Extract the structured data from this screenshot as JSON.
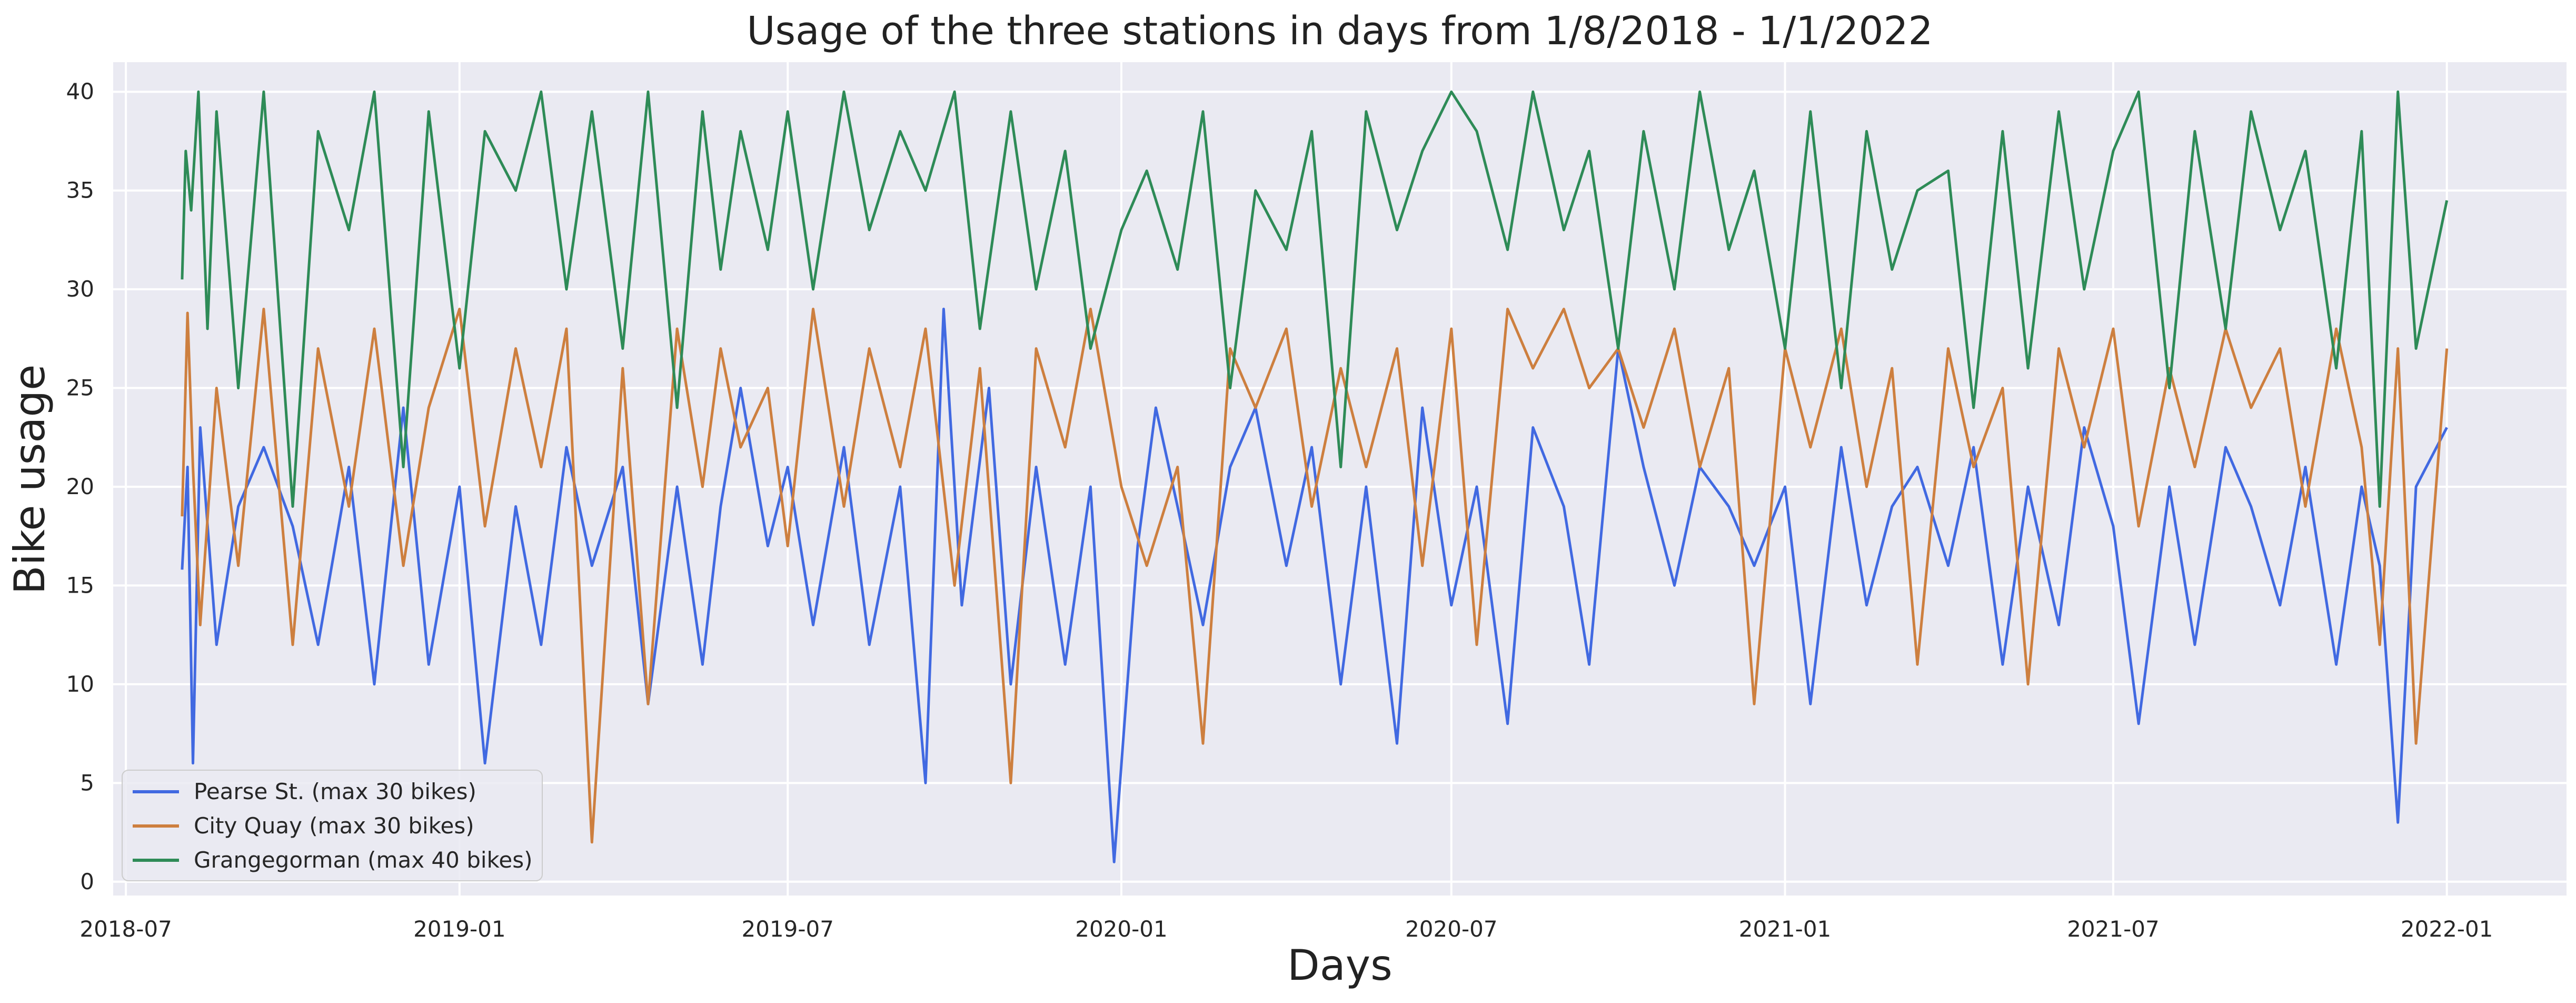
{
  "chart_data": {
    "type": "line",
    "title": "Usage of the three stations in days from 1/8/2018 - 1/1/2022",
    "xlabel": "Days",
    "ylabel": "Bike usage",
    "x_range": [
      "2018-06-24",
      "2022-03-08"
    ],
    "ylim": [
      -0.7,
      41.5
    ],
    "x_ticks": [
      "2018-07",
      "2019-01",
      "2019-07",
      "2020-01",
      "2020-07",
      "2021-01",
      "2021-07",
      "2022-01"
    ],
    "y_ticks": [
      0,
      5,
      10,
      15,
      20,
      25,
      30,
      35,
      40
    ],
    "grid": true,
    "legend_position": "lower-left",
    "background": "#eaeaf2",
    "series": [
      {
        "name": "Pearse St. (max 30 bikes)",
        "color": "#4169e1",
        "x": [
          "2018-08-01",
          "2018-08-04",
          "2018-08-07",
          "2018-08-11",
          "2018-08-20",
          "2018-09-01",
          "2018-09-15",
          "2018-10-01",
          "2018-10-15",
          "2018-11-01",
          "2018-11-15",
          "2018-12-01",
          "2018-12-15",
          "2019-01-01",
          "2019-01-15",
          "2019-02-01",
          "2019-02-15",
          "2019-03-01",
          "2019-03-15",
          "2019-04-01",
          "2019-04-15",
          "2019-05-01",
          "2019-05-15",
          "2019-05-25",
          "2019-06-05",
          "2019-06-20",
          "2019-07-01",
          "2019-07-15",
          "2019-08-01",
          "2019-08-15",
          "2019-09-01",
          "2019-09-15",
          "2019-09-25",
          "2019-10-05",
          "2019-10-20",
          "2019-11-01",
          "2019-11-15",
          "2019-12-01",
          "2019-12-15",
          "2019-12-28",
          "2020-01-10",
          "2020-01-20",
          "2020-02-01",
          "2020-02-15",
          "2020-03-01",
          "2020-03-15",
          "2020-04-01",
          "2020-04-15",
          "2020-05-01",
          "2020-05-15",
          "2020-06-01",
          "2020-06-15",
          "2020-07-01",
          "2020-07-15",
          "2020-08-01",
          "2020-08-15",
          "2020-09-01",
          "2020-09-15",
          "2020-10-01",
          "2020-10-15",
          "2020-11-01",
          "2020-11-15",
          "2020-12-01",
          "2020-12-15",
          "2021-01-01",
          "2021-01-15",
          "2021-02-01",
          "2021-02-15",
          "2021-03-01",
          "2021-03-15",
          "2021-04-01",
          "2021-04-15",
          "2021-05-01",
          "2021-05-15",
          "2021-06-01",
          "2021-06-15",
          "2021-07-01",
          "2021-07-15",
          "2021-08-01",
          "2021-08-15",
          "2021-09-01",
          "2021-09-15",
          "2021-10-01",
          "2021-10-15",
          "2021-11-01",
          "2021-11-15",
          "2021-11-25",
          "2021-12-05",
          "2021-12-15",
          "2022-01-01"
        ],
        "values": [
          15.8,
          21,
          6,
          23,
          12,
          19,
          22,
          18,
          12,
          21,
          10,
          24,
          11,
          20,
          6,
          19,
          12,
          22,
          16,
          21,
          9,
          20,
          11,
          19,
          25,
          17,
          21,
          13,
          22,
          12,
          20,
          5,
          29,
          14,
          25,
          10,
          21,
          11,
          20,
          1,
          17,
          24,
          19,
          13,
          21,
          24,
          16,
          22,
          10,
          20,
          7,
          24,
          14,
          20,
          8,
          23,
          19,
          11,
          27,
          21,
          15,
          21,
          19,
          16,
          20,
          9,
          22,
          14,
          19,
          21,
          16,
          22,
          11,
          20,
          13,
          23,
          18,
          8,
          20,
          12,
          22,
          19,
          14,
          21,
          11,
          20,
          16,
          3,
          20,
          23
        ]
      },
      {
        "name": "City Quay (max 30 bikes)",
        "color": "#cd7f3f",
        "x": [
          "2018-08-01",
          "2018-08-04",
          "2018-08-07",
          "2018-08-11",
          "2018-08-20",
          "2018-09-01",
          "2018-09-15",
          "2018-10-01",
          "2018-10-15",
          "2018-11-01",
          "2018-11-15",
          "2018-12-01",
          "2018-12-15",
          "2019-01-01",
          "2019-01-15",
          "2019-02-01",
          "2019-02-15",
          "2019-03-01",
          "2019-03-15",
          "2019-04-01",
          "2019-04-15",
          "2019-05-01",
          "2019-05-15",
          "2019-05-25",
          "2019-06-05",
          "2019-06-20",
          "2019-07-01",
          "2019-07-15",
          "2019-08-01",
          "2019-08-15",
          "2019-09-01",
          "2019-09-15",
          "2019-10-01",
          "2019-10-15",
          "2019-11-01",
          "2019-11-15",
          "2019-12-01",
          "2019-12-15",
          "2020-01-01",
          "2020-01-15",
          "2020-02-01",
          "2020-02-15",
          "2020-03-01",
          "2020-03-15",
          "2020-04-01",
          "2020-04-15",
          "2020-05-01",
          "2020-05-15",
          "2020-06-01",
          "2020-06-15",
          "2020-07-01",
          "2020-07-15",
          "2020-08-01",
          "2020-08-15",
          "2020-09-01",
          "2020-09-15",
          "2020-10-01",
          "2020-10-15",
          "2020-11-01",
          "2020-11-15",
          "2020-12-01",
          "2020-12-15",
          "2021-01-01",
          "2021-01-15",
          "2021-02-01",
          "2021-02-15",
          "2021-03-01",
          "2021-03-15",
          "2021-04-01",
          "2021-04-15",
          "2021-05-01",
          "2021-05-15",
          "2021-06-01",
          "2021-06-15",
          "2021-07-01",
          "2021-07-15",
          "2021-08-01",
          "2021-08-15",
          "2021-09-01",
          "2021-09-15",
          "2021-10-01",
          "2021-10-15",
          "2021-11-01",
          "2021-11-15",
          "2021-11-25",
          "2021-12-05",
          "2021-12-15",
          "2022-01-01"
        ],
        "values": [
          18.5,
          28.8,
          21,
          13,
          25,
          16,
          29,
          12,
          27,
          19,
          28,
          16,
          24,
          29,
          18,
          27,
          21,
          28,
          2,
          26,
          9,
          28,
          20,
          27,
          22,
          25,
          17,
          29,
          19,
          27,
          21,
          28,
          15,
          26,
          5,
          27,
          22,
          29,
          20,
          16,
          21,
          7,
          27,
          24,
          28,
          19,
          26,
          21,
          27,
          16,
          28,
          12,
          29,
          26,
          29,
          25,
          27,
          23,
          28,
          21,
          26,
          9,
          27,
          22,
          28,
          20,
          26,
          11,
          27,
          21,
          25,
          10,
          27,
          22,
          28,
          18,
          26,
          21,
          28,
          24,
          27,
          19,
          28,
          22,
          12,
          27,
          7,
          27
        ]
      },
      {
        "name": "Grangegorman (max 40 bikes)",
        "color": "#2e8b57",
        "x": [
          "2018-08-01",
          "2018-08-03",
          "2018-08-06",
          "2018-08-10",
          "2018-08-15",
          "2018-08-20",
          "2018-09-01",
          "2018-09-15",
          "2018-10-01",
          "2018-10-15",
          "2018-11-01",
          "2018-11-15",
          "2018-12-01",
          "2018-12-15",
          "2019-01-01",
          "2019-01-15",
          "2019-02-01",
          "2019-02-15",
          "2019-03-01",
          "2019-03-15",
          "2019-04-01",
          "2019-04-15",
          "2019-05-01",
          "2019-05-15",
          "2019-05-25",
          "2019-06-05",
          "2019-06-20",
          "2019-07-01",
          "2019-07-15",
          "2019-08-01",
          "2019-08-15",
          "2019-09-01",
          "2019-09-15",
          "2019-10-01",
          "2019-10-15",
          "2019-11-01",
          "2019-11-15",
          "2019-12-01",
          "2019-12-15",
          "2020-01-01",
          "2020-01-15",
          "2020-02-01",
          "2020-02-15",
          "2020-03-01",
          "2020-03-15",
          "2020-04-01",
          "2020-04-15",
          "2020-05-01",
          "2020-05-15",
          "2020-06-01",
          "2020-06-15",
          "2020-07-01",
          "2020-07-15",
          "2020-08-01",
          "2020-08-15",
          "2020-09-01",
          "2020-09-15",
          "2020-10-01",
          "2020-10-15",
          "2020-11-01",
          "2020-11-15",
          "2020-12-01",
          "2020-12-15",
          "2021-01-01",
          "2021-01-15",
          "2021-02-01",
          "2021-02-15",
          "2021-03-01",
          "2021-03-15",
          "2021-04-01",
          "2021-04-15",
          "2021-05-01",
          "2021-05-15",
          "2021-06-01",
          "2021-06-15",
          "2021-07-01",
          "2021-07-15",
          "2021-08-01",
          "2021-08-15",
          "2021-09-01",
          "2021-09-15",
          "2021-10-01",
          "2021-10-15",
          "2021-11-01",
          "2021-11-15",
          "2021-11-25",
          "2021-12-05",
          "2021-12-15",
          "2022-01-01"
        ],
        "values": [
          30.5,
          37,
          34,
          40,
          28,
          39,
          25,
          40,
          19,
          38,
          33,
          40,
          21,
          39,
          26,
          38,
          35,
          40,
          30,
          39,
          27,
          40,
          24,
          39,
          31,
          38,
          32,
          39,
          30,
          40,
          33,
          38,
          35,
          40,
          28,
          39,
          30,
          37,
          27,
          33,
          36,
          31,
          39,
          25,
          35,
          32,
          38,
          21,
          39,
          33,
          37,
          40,
          38,
          32,
          40,
          33,
          37,
          27,
          38,
          30,
          40,
          32,
          36,
          27,
          39,
          25,
          38,
          31,
          35,
          36,
          24,
          38,
          26,
          39,
          30,
          37,
          40,
          25,
          38,
          28,
          39,
          33,
          37,
          26,
          38,
          19,
          40,
          27,
          34.5
        ]
      }
    ]
  }
}
